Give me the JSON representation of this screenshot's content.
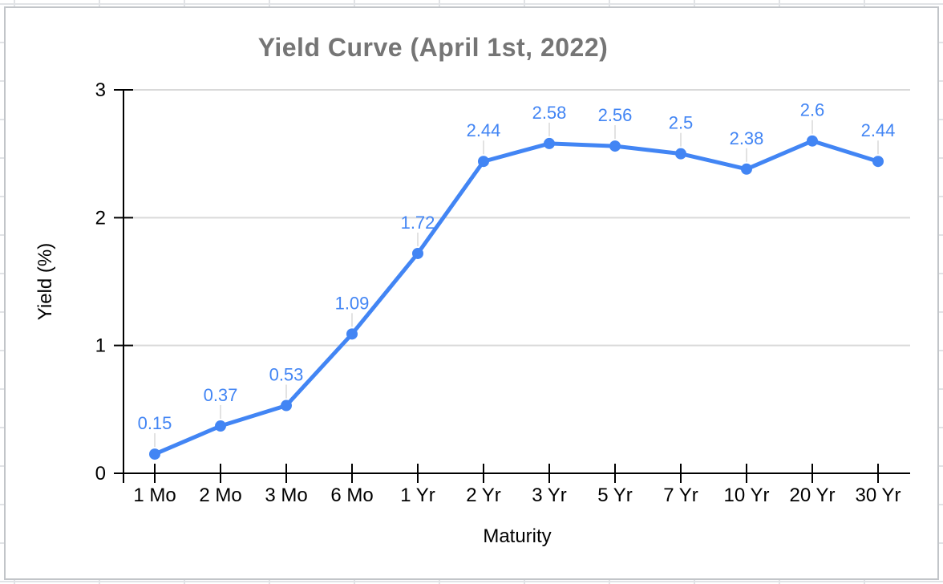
{
  "chart_data": {
    "type": "line",
    "title": "Yield Curve (April 1st, 2022)",
    "xlabel": "Maturity",
    "ylabel": "Yield (%)",
    "categories": [
      "1 Mo",
      "2 Mo",
      "3 Mo",
      "6 Mo",
      "1 Yr",
      "2 Yr",
      "3 Yr",
      "5 Yr",
      "7 Yr",
      "10 Yr",
      "20 Yr",
      "30 Yr"
    ],
    "values": [
      0.15,
      0.37,
      0.53,
      1.09,
      1.72,
      2.44,
      2.58,
      2.56,
      2.5,
      2.38,
      2.6,
      2.44
    ],
    "data_labels": [
      "0.15",
      "0.37",
      "0.53",
      "1.09",
      "1.72",
      "2.44",
      "2.58",
      "2.56",
      "2.5",
      "2.38",
      "2.6",
      "2.44"
    ],
    "ylim": [
      0,
      3
    ],
    "yticks": [
      0,
      1,
      2,
      3
    ],
    "grid": "horizontal",
    "legend": "none",
    "marker": "circle",
    "colors": {
      "series": "#4285f4",
      "data_label": "#4285f4",
      "title": "#757575",
      "axis": "#000000",
      "tick_label": "#000000",
      "gridline": "#d9d9d9",
      "leader_line": "#e2e2e2",
      "card_border": "#c2c5c9",
      "sheet_gridline": "#e1e3e6"
    }
  }
}
